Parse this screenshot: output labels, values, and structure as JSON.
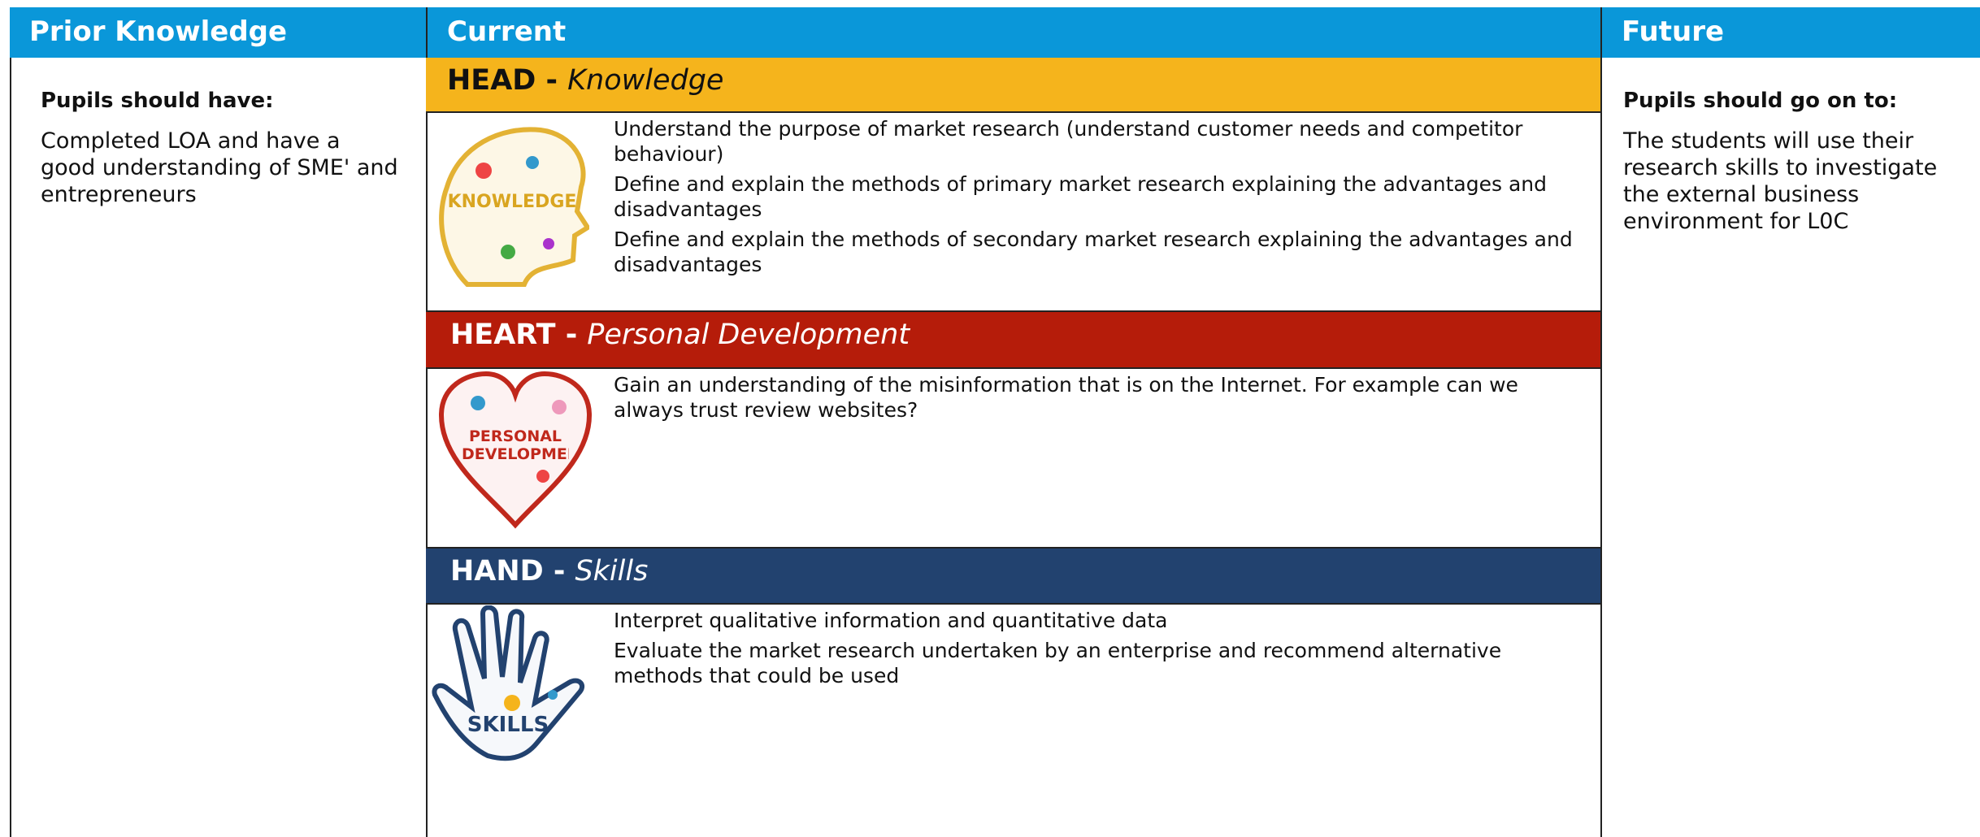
{
  "prior": {
    "header": "Prior Knowledge",
    "heading": "Pupils should have:",
    "text": "Completed LOA and have a good understanding of SME' and entrepreneurs"
  },
  "current": {
    "header": "Current",
    "sections": [
      {
        "label": "HEAD -",
        "sublabel": "Knowledge",
        "icon_text": "KNOWLEDGE",
        "items": [
          "Understand the purpose of market research (understand customer needs and competitor behaviour)",
          "Define and explain the methods of primary market research explaining the advantages and disadvantages",
          "Define and explain the methods of secondary market research explaining the advantages and disadvantages"
        ]
      },
      {
        "label": "HEART -",
        "sublabel": "Personal Development",
        "icon_text": "PERSONAL DEVELOPMENT",
        "items": [
          "Gain an understanding of the misinformation that is on the Internet.  For example can we always trust review websites?"
        ]
      },
      {
        "label": "HAND -",
        "sublabel": "Skills",
        "icon_text": "SKILLS",
        "items": [
          "Interpret qualitative information and quantitative data",
          "Evaluate the market research undertaken by an enterprise and recommend alternative methods that could be used"
        ]
      }
    ]
  },
  "future": {
    "header": "Future",
    "heading": "Pupils should go on to:",
    "text": "The students will use their research skills to investigate the external business environment for L0C"
  }
}
